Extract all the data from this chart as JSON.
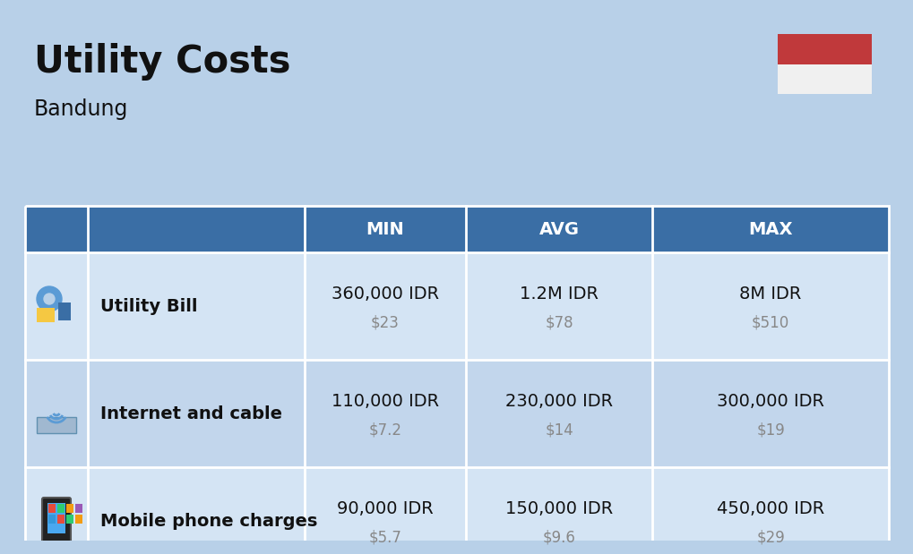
{
  "title": "Utility Costs",
  "subtitle": "Bandung",
  "background_color": "#b8d0e8",
  "header_color": "#3a6ea5",
  "header_text_color": "#ffffff",
  "row_color_light": "#d4e4f4",
  "row_color_dark": "#c2d6ec",
  "separator_color": "#ffffff",
  "col_headers": [
    "MIN",
    "AVG",
    "MAX"
  ],
  "rows": [
    {
      "label": "Utility Bill",
      "min_idr": "360,000 IDR",
      "min_usd": "$23",
      "avg_idr": "1.2M IDR",
      "avg_usd": "$78",
      "max_idr": "8M IDR",
      "max_usd": "$510"
    },
    {
      "label": "Internet and cable",
      "min_idr": "110,000 IDR",
      "min_usd": "$7.2",
      "avg_idr": "230,000 IDR",
      "avg_usd": "$14",
      "max_idr": "300,000 IDR",
      "max_usd": "$19"
    },
    {
      "label": "Mobile phone charges",
      "min_idr": "90,000 IDR",
      "min_usd": "$5.7",
      "avg_idr": "150,000 IDR",
      "avg_usd": "$9.6",
      "max_idr": "450,000 IDR",
      "max_usd": "$29"
    }
  ],
  "flag_red": "#c0393b",
  "flag_white": "#f0f0f0",
  "title_fontsize": 30,
  "subtitle_fontsize": 17,
  "header_fontsize": 14,
  "label_fontsize": 14,
  "value_fontsize": 14,
  "usd_fontsize": 12,
  "text_color": "#111111",
  "usd_color": "#888888"
}
